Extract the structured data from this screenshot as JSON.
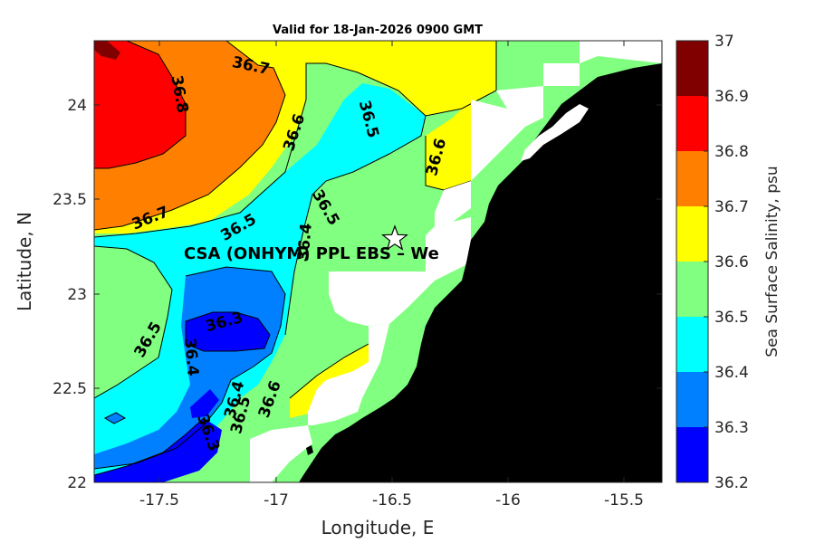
{
  "title": "Valid for 18-Jan-2026 0900 GMT",
  "x_axis": {
    "label": "Longitude, E",
    "ticks": [
      "-17.5",
      "-17",
      "-16.5",
      "-16",
      "-15.5"
    ]
  },
  "y_axis": {
    "label": "Latitude, N",
    "ticks": [
      "24",
      "23.5",
      "23",
      "22.5",
      "22"
    ]
  },
  "colorbar": {
    "label": "Sea Surface Salinity, psu",
    "levels": [
      "37",
      "36.9",
      "36.8",
      "36.7",
      "36.6",
      "36.5",
      "36.4",
      "36.3",
      "36.2"
    ],
    "colors": [
      "#800000",
      "#ff0000",
      "#ff8000",
      "#ffff00",
      "#80ff80",
      "#00ffff",
      "#0080ff",
      "#0000ff"
    ]
  },
  "contour_labels": [
    "36.7",
    "36.8",
    "36.6",
    "36.5",
    "36.6",
    "36.7",
    "36.5",
    "36.5",
    "36.4",
    "36.3",
    "36.5",
    "36.4",
    "36.4",
    "36.5",
    "36.6",
    "36.3"
  ],
  "station_label": "CSA (ONHYM) PPL EBS  – We",
  "colors": {
    "land": "#000000",
    "no_data": "#ffffff"
  },
  "chart_data": {
    "type": "heatmap",
    "title": "Valid for 18-Jan-2026 0900 GMT",
    "xlabel": "Longitude, E",
    "ylabel": "Latitude, N",
    "xlim": [
      -17.8,
      -15.35
    ],
    "ylim": [
      22,
      24.35
    ],
    "colorbar_label": "Sea Surface Salinity, psu",
    "clim": [
      36.2,
      37
    ],
    "station": {
      "lon": -16.48,
      "lat": 23.29,
      "label": "CSA (ONHYM) PPL EBS  – We"
    }
  }
}
